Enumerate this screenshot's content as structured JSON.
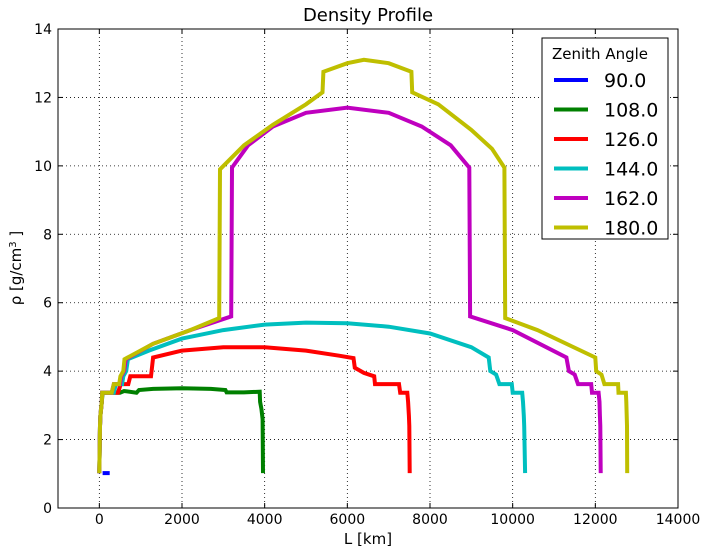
{
  "chart_data": {
    "type": "line",
    "title": "Density Profile",
    "xlabel": "L [km]",
    "ylabel_parts": {
      "pre": "ρ [g/cm",
      "sup": "3",
      "post": " ]"
    },
    "xlim": [
      -1000,
      14000
    ],
    "ylim": [
      0,
      14
    ],
    "xticks": [
      "0",
      "2000",
      "4000",
      "6000",
      "8000",
      "10000",
      "12000",
      "14000"
    ],
    "yticks": [
      "0",
      "2",
      "4",
      "6",
      "8",
      "10",
      "12",
      "14"
    ],
    "grid": true,
    "legend": {
      "title": "Zenith Angle",
      "position": "top-right"
    },
    "series": [
      {
        "name": "90.0",
        "color": "#0000ff",
        "points": [
          [
            80,
            1.02
          ],
          [
            250,
            1.02
          ]
        ]
      },
      {
        "name": "108.0",
        "color": "#008000",
        "points": [
          [
            0,
            1.02
          ],
          [
            15,
            2.4
          ],
          [
            25,
            2.7
          ],
          [
            60,
            3.1
          ],
          [
            80,
            3.37
          ],
          [
            300,
            3.37
          ],
          [
            500,
            3.37
          ],
          [
            600,
            3.42
          ],
          [
            900,
            3.37
          ],
          [
            960,
            3.45
          ],
          [
            1300,
            3.48
          ],
          [
            2000,
            3.5
          ],
          [
            2700,
            3.48
          ],
          [
            3050,
            3.45
          ],
          [
            3080,
            3.38
          ],
          [
            3500,
            3.38
          ],
          [
            3880,
            3.4
          ],
          [
            3890,
            3.1
          ],
          [
            3920,
            2.9
          ],
          [
            3950,
            2.6
          ],
          [
            3960,
            1.02
          ]
        ]
      },
      {
        "name": "126.0",
        "color": "#ff0000",
        "points": [
          [
            0,
            1.02
          ],
          [
            15,
            2.4
          ],
          [
            25,
            2.7
          ],
          [
            60,
            3.1
          ],
          [
            70,
            3.37
          ],
          [
            450,
            3.37
          ],
          [
            520,
            3.62
          ],
          [
            700,
            3.62
          ],
          [
            750,
            3.85
          ],
          [
            1250,
            3.85
          ],
          [
            1300,
            4.4
          ],
          [
            2000,
            4.6
          ],
          [
            3000,
            4.7
          ],
          [
            4000,
            4.7
          ],
          [
            5000,
            4.6
          ],
          [
            5800,
            4.45
          ],
          [
            6150,
            4.38
          ],
          [
            6180,
            4.1
          ],
          [
            6400,
            3.95
          ],
          [
            6650,
            3.85
          ],
          [
            6670,
            3.62
          ],
          [
            7250,
            3.62
          ],
          [
            7280,
            3.37
          ],
          [
            7450,
            3.37
          ],
          [
            7470,
            3.1
          ],
          [
            7490,
            2.7
          ],
          [
            7500,
            2.4
          ],
          [
            7510,
            1.02
          ]
        ]
      },
      {
        "name": "144.0",
        "color": "#00bfbf",
        "points": [
          [
            0,
            1.02
          ],
          [
            15,
            2.4
          ],
          [
            25,
            2.7
          ],
          [
            60,
            3.1
          ],
          [
            70,
            3.37
          ],
          [
            350,
            3.37
          ],
          [
            400,
            3.62
          ],
          [
            550,
            3.62
          ],
          [
            580,
            3.85
          ],
          [
            650,
            4.0
          ],
          [
            690,
            4.35
          ],
          [
            1200,
            4.6
          ],
          [
            2000,
            4.95
          ],
          [
            3000,
            5.2
          ],
          [
            4000,
            5.36
          ],
          [
            5000,
            5.42
          ],
          [
            6000,
            5.4
          ],
          [
            7000,
            5.3
          ],
          [
            8000,
            5.1
          ],
          [
            9000,
            4.7
          ],
          [
            9420,
            4.4
          ],
          [
            9460,
            4.0
          ],
          [
            9600,
            3.9
          ],
          [
            9680,
            3.62
          ],
          [
            9980,
            3.62
          ],
          [
            10000,
            3.37
          ],
          [
            10230,
            3.37
          ],
          [
            10250,
            3.1
          ],
          [
            10270,
            2.7
          ],
          [
            10280,
            2.4
          ],
          [
            10300,
            1.02
          ]
        ]
      },
      {
        "name": "162.0",
        "color": "#bf00bf",
        "points": [
          [
            0,
            1.02
          ],
          [
            15,
            2.4
          ],
          [
            25,
            2.7
          ],
          [
            60,
            3.1
          ],
          [
            70,
            3.37
          ],
          [
            300,
            3.37
          ],
          [
            350,
            3.62
          ],
          [
            500,
            3.62
          ],
          [
            530,
            3.85
          ],
          [
            600,
            4.0
          ],
          [
            640,
            4.35
          ],
          [
            1300,
            4.8
          ],
          [
            2200,
            5.2
          ],
          [
            3190,
            5.6
          ],
          [
            3210,
            9.95
          ],
          [
            3600,
            10.6
          ],
          [
            4200,
            11.15
          ],
          [
            5000,
            11.55
          ],
          [
            6000,
            11.7
          ],
          [
            7000,
            11.55
          ],
          [
            7800,
            11.15
          ],
          [
            8500,
            10.6
          ],
          [
            8950,
            9.95
          ],
          [
            8970,
            5.6
          ],
          [
            10000,
            5.2
          ],
          [
            11300,
            4.4
          ],
          [
            11360,
            4.0
          ],
          [
            11500,
            3.9
          ],
          [
            11580,
            3.62
          ],
          [
            11900,
            3.62
          ],
          [
            11920,
            3.37
          ],
          [
            12080,
            3.37
          ],
          [
            12100,
            3.1
          ],
          [
            12110,
            2.7
          ],
          [
            12120,
            2.4
          ],
          [
            12130,
            1.02
          ]
        ]
      },
      {
        "name": "180.0",
        "color": "#bfbf00",
        "points": [
          [
            0,
            1.02
          ],
          [
            15,
            2.4
          ],
          [
            25,
            2.7
          ],
          [
            60,
            3.1
          ],
          [
            70,
            3.37
          ],
          [
            300,
            3.37
          ],
          [
            350,
            3.62
          ],
          [
            480,
            3.62
          ],
          [
            510,
            3.85
          ],
          [
            580,
            4.0
          ],
          [
            610,
            4.35
          ],
          [
            1300,
            4.8
          ],
          [
            2200,
            5.2
          ],
          [
            2900,
            5.55
          ],
          [
            2920,
            9.9
          ],
          [
            3500,
            10.6
          ],
          [
            4200,
            11.2
          ],
          [
            5000,
            11.8
          ],
          [
            5400,
            12.15
          ],
          [
            5420,
            12.75
          ],
          [
            6000,
            13.0
          ],
          [
            6400,
            13.1
          ],
          [
            7000,
            13.0
          ],
          [
            7550,
            12.75
          ],
          [
            7570,
            12.15
          ],
          [
            8200,
            11.8
          ],
          [
            9000,
            11.05
          ],
          [
            9500,
            10.5
          ],
          [
            9800,
            9.95
          ],
          [
            9820,
            5.55
          ],
          [
            10600,
            5.2
          ],
          [
            12000,
            4.4
          ],
          [
            12020,
            4.0
          ],
          [
            12150,
            3.9
          ],
          [
            12220,
            3.62
          ],
          [
            12550,
            3.62
          ],
          [
            12560,
            3.37
          ],
          [
            12740,
            3.37
          ],
          [
            12750,
            3.1
          ],
          [
            12760,
            2.7
          ],
          [
            12765,
            2.4
          ],
          [
            12770,
            1.02
          ]
        ]
      }
    ]
  }
}
